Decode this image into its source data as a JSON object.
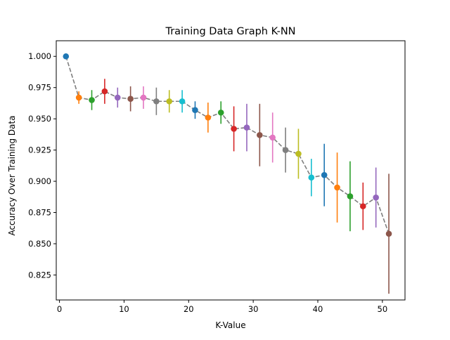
{
  "chart_data": {
    "type": "scatter",
    "title": "Training Data Graph K-NN",
    "xlabel": "K-Value",
    "ylabel": "Accuracy Over Training Data",
    "xlim": [
      -0.5,
      53.5
    ],
    "ylim": [
      0.805,
      1.0125
    ],
    "xticks": [
      0,
      10,
      20,
      30,
      40,
      50
    ],
    "xtick_labels": [
      "0",
      "10",
      "20",
      "30",
      "40",
      "50"
    ],
    "yticks": [
      0.825,
      0.85,
      0.875,
      0.9,
      0.925,
      0.95,
      0.975,
      1.0
    ],
    "ytick_labels": [
      "0.825",
      "0.850",
      "0.875",
      "0.900",
      "0.925",
      "0.950",
      "0.975",
      "1.000"
    ],
    "grid": false,
    "legend": "none",
    "trend_line": {
      "style": "dashed",
      "color": "#7f7f7f"
    },
    "points": [
      {
        "k": 1,
        "mean": 1.0,
        "err": 0.0,
        "color": "#1f77b4"
      },
      {
        "k": 3,
        "mean": 0.967,
        "err": 0.005,
        "color": "#ff7f0e"
      },
      {
        "k": 5,
        "mean": 0.965,
        "err": 0.008,
        "color": "#2ca02c"
      },
      {
        "k": 7,
        "mean": 0.972,
        "err": 0.01,
        "color": "#d62728"
      },
      {
        "k": 9,
        "mean": 0.967,
        "err": 0.008,
        "color": "#9467bd"
      },
      {
        "k": 11,
        "mean": 0.966,
        "err": 0.01,
        "color": "#8c564b"
      },
      {
        "k": 13,
        "mean": 0.967,
        "err": 0.009,
        "color": "#e377c2"
      },
      {
        "k": 15,
        "mean": 0.964,
        "err": 0.011,
        "color": "#7f7f7f"
      },
      {
        "k": 17,
        "mean": 0.964,
        "err": 0.009,
        "color": "#bcbd22"
      },
      {
        "k": 19,
        "mean": 0.964,
        "err": 0.009,
        "color": "#17becf"
      },
      {
        "k": 21,
        "mean": 0.957,
        "err": 0.007,
        "color": "#1f77b4"
      },
      {
        "k": 23,
        "mean": 0.951,
        "err": 0.012,
        "color": "#ff7f0e"
      },
      {
        "k": 25,
        "mean": 0.955,
        "err": 0.009,
        "color": "#2ca02c"
      },
      {
        "k": 27,
        "mean": 0.942,
        "err": 0.018,
        "color": "#d62728"
      },
      {
        "k": 29,
        "mean": 0.943,
        "err": 0.019,
        "color": "#9467bd"
      },
      {
        "k": 31,
        "mean": 0.937,
        "err": 0.025,
        "color": "#8c564b"
      },
      {
        "k": 33,
        "mean": 0.935,
        "err": 0.02,
        "color": "#e377c2"
      },
      {
        "k": 35,
        "mean": 0.925,
        "err": 0.018,
        "color": "#7f7f7f"
      },
      {
        "k": 37,
        "mean": 0.922,
        "err": 0.02,
        "color": "#bcbd22"
      },
      {
        "k": 39,
        "mean": 0.903,
        "err": 0.015,
        "color": "#17becf"
      },
      {
        "k": 41,
        "mean": 0.905,
        "err": 0.025,
        "color": "#1f77b4"
      },
      {
        "k": 43,
        "mean": 0.895,
        "err": 0.028,
        "color": "#ff7f0e"
      },
      {
        "k": 45,
        "mean": 0.888,
        "err": 0.028,
        "color": "#2ca02c"
      },
      {
        "k": 47,
        "mean": 0.88,
        "err": 0.019,
        "color": "#d62728"
      },
      {
        "k": 49,
        "mean": 0.887,
        "err": 0.024,
        "color": "#9467bd"
      },
      {
        "k": 51,
        "mean": 0.858,
        "err": 0.048,
        "color": "#8c564b"
      }
    ]
  }
}
